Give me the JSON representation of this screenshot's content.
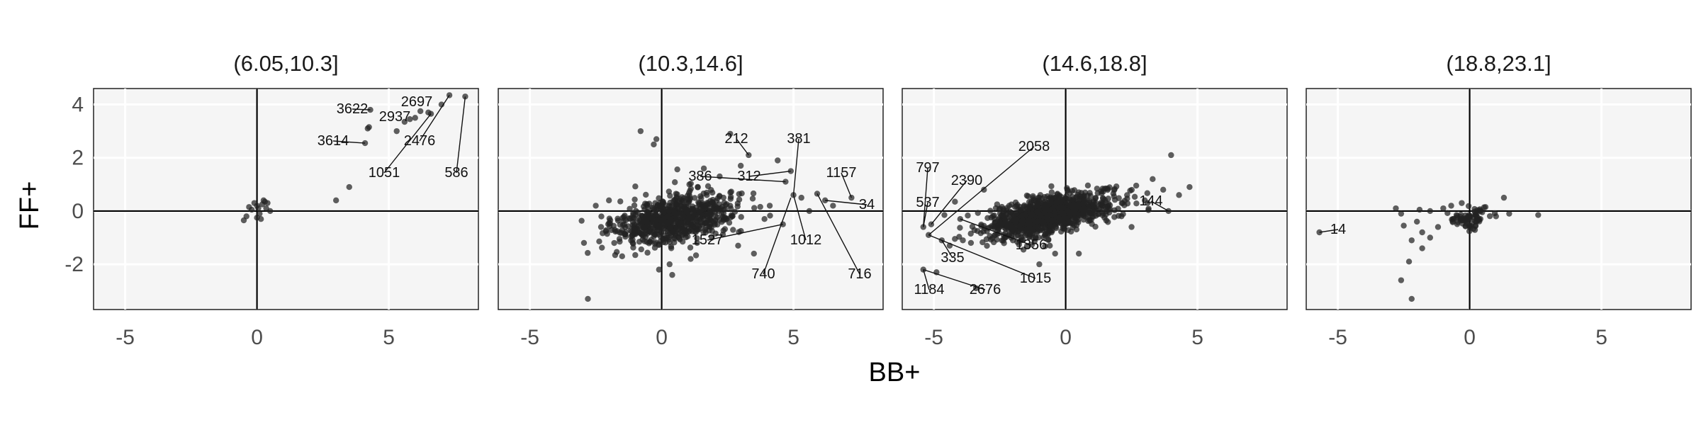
{
  "chart_data": {
    "type": "scatter",
    "xlabel": "BB+",
    "ylabel": "FF+",
    "xlim": [
      -6.2,
      8.4
    ],
    "ylim": [
      -3.7,
      4.6
    ],
    "x_ticks": [
      -5,
      0,
      5
    ],
    "y_ticks": [
      -2,
      0,
      2,
      4
    ],
    "grid": true,
    "reference_lines": {
      "x": 0,
      "y": 0
    },
    "panels": [
      {
        "title": "(6.05,10.3]",
        "points": [
          [
            0.0,
            0.2
          ],
          [
            -0.2,
            0.05
          ],
          [
            0.3,
            0.35
          ],
          [
            0.1,
            -0.1
          ],
          [
            -0.4,
            -0.2
          ],
          [
            0.5,
            0.0
          ],
          [
            0.2,
            0.25
          ],
          [
            -0.1,
            0.3
          ],
          [
            0.35,
            0.1
          ],
          [
            -0.3,
            0.15
          ],
          [
            0.15,
            -0.3
          ],
          [
            0.4,
            0.3
          ],
          [
            0.05,
            0.1
          ],
          [
            -0.5,
            -0.35
          ],
          [
            0.25,
            0.4
          ],
          [
            0.0,
            -0.25
          ],
          [
            3.0,
            0.4
          ],
          [
            3.5,
            0.9
          ],
          [
            4.1,
            2.55
          ],
          [
            4.2,
            3.1
          ],
          [
            4.25,
            3.15
          ],
          [
            4.3,
            3.8
          ],
          [
            5.6,
            3.35
          ],
          [
            5.8,
            3.45
          ],
          [
            6.0,
            3.5
          ],
          [
            6.2,
            3.75
          ],
          [
            6.5,
            3.7
          ],
          [
            6.6,
            3.65
          ],
          [
            7.0,
            4.0
          ],
          [
            7.3,
            4.35
          ],
          [
            7.9,
            4.3
          ],
          [
            5.3,
            3.0
          ]
        ],
        "labels": [
          {
            "text": "3622",
            "x": 4.3,
            "y": 3.8
          },
          {
            "text": "2937",
            "x": 5.8,
            "y": 3.45
          },
          {
            "text": "2697",
            "x": 6.5,
            "y": 3.7
          },
          {
            "text": "3614",
            "x": 4.1,
            "y": 2.55
          },
          {
            "text": "2476",
            "x": 7.3,
            "y": 4.35
          },
          {
            "text": "1051",
            "x": 6.6,
            "y": 3.65
          },
          {
            "text": "586",
            "x": 7.9,
            "y": 4.3
          }
        ]
      },
      {
        "title": "(10.3,14.6]",
        "points": [
          [
            -2.8,
            -3.3
          ],
          [
            -0.8,
            3.0
          ],
          [
            -0.2,
            2.7
          ],
          [
            -0.3,
            2.5
          ],
          [
            -2.3,
            -0.6
          ],
          [
            -1.8,
            -1.2
          ],
          [
            -1.5,
            -1.7
          ],
          [
            -2.0,
            0.4
          ],
          [
            2.6,
            2.9
          ],
          [
            3.3,
            2.1
          ],
          [
            4.4,
            1.9
          ],
          [
            4.9,
            1.5
          ],
          [
            4.7,
            1.1
          ],
          [
            5.0,
            0.6
          ],
          [
            5.3,
            0.5
          ],
          [
            5.9,
            0.65
          ],
          [
            6.2,
            0.4
          ],
          [
            6.5,
            0.2
          ],
          [
            7.2,
            0.5
          ],
          [
            4.1,
            0.2
          ],
          [
            3.9,
            -0.3
          ],
          [
            3.5,
            -1.6
          ],
          [
            2.9,
            -1.3
          ],
          [
            1.9,
            -1.0
          ],
          [
            1.1,
            -1.8
          ],
          [
            0.4,
            -2.4
          ],
          [
            -0.1,
            -2.2
          ],
          [
            1.6,
            1.6
          ],
          [
            2.2,
            1.3
          ],
          [
            3.0,
            1.7
          ],
          [
            5.6,
            0.0
          ],
          [
            4.6,
            -0.5
          ],
          [
            -2.5,
            0.2
          ],
          [
            0.3,
            -2.0
          ]
        ],
        "cluster": {
          "n": 720,
          "center": [
            0.5,
            -0.3
          ],
          "sd": [
            1.15,
            0.5
          ],
          "corr": 0.35,
          "seed": 20
        },
        "labels": [
          {
            "text": "212",
            "x": 3.3,
            "y": 2.1
          },
          {
            "text": "381",
            "x": 5.0,
            "y": 0.6
          },
          {
            "text": "1157",
            "x": 7.2,
            "y": 0.5
          },
          {
            "text": "386",
            "x": 4.7,
            "y": 1.1
          },
          {
            "text": "312",
            "x": 4.9,
            "y": 1.5
          },
          {
            "text": "34",
            "x": 6.2,
            "y": 0.4
          },
          {
            "text": "1527",
            "x": 4.6,
            "y": -0.5
          },
          {
            "text": "1012",
            "x": 5.0,
            "y": 0.6
          },
          {
            "text": "740",
            "x": 4.9,
            "y": 0.5
          },
          {
            "text": "716",
            "x": 5.9,
            "y": 0.65
          }
        ]
      },
      {
        "title": "(14.6,18.8]",
        "points": [
          [
            -5.4,
            -2.2
          ],
          [
            -4.9,
            -2.3
          ],
          [
            -3.4,
            -2.9
          ],
          [
            -5.4,
            -0.6
          ],
          [
            -5.2,
            -0.9
          ],
          [
            -4.7,
            -1.1
          ],
          [
            -4.4,
            -1.3
          ],
          [
            -3.9,
            -1.1
          ],
          [
            -3.6,
            -0.85
          ],
          [
            -4.6,
            -0.15
          ],
          [
            -4.2,
            0.35
          ],
          [
            -3.1,
            0.8
          ],
          [
            -2.6,
            0.25
          ],
          [
            -5.1,
            -0.5
          ],
          [
            -4.0,
            -0.3
          ],
          [
            -1.0,
            -2.0
          ],
          [
            -0.4,
            -1.6
          ],
          [
            -1.6,
            -1.45
          ],
          [
            4.0,
            2.1
          ],
          [
            4.7,
            0.9
          ],
          [
            3.9,
            0.0
          ],
          [
            3.7,
            0.8
          ],
          [
            4.3,
            0.6
          ],
          [
            3.3,
            1.2
          ],
          [
            -0.6,
            -1.3
          ],
          [
            0.5,
            -1.6
          ],
          [
            -2.0,
            -1.1
          ],
          [
            3.0,
            0.4
          ],
          [
            2.5,
            -0.6
          ]
        ],
        "cluster": {
          "n": 1050,
          "center": [
            -0.6,
            -0.15
          ],
          "sd": [
            1.2,
            0.42
          ],
          "corr": 0.55,
          "seed": 7
        },
        "labels": [
          {
            "text": "2058",
            "x": -5.2,
            "y": -0.9
          },
          {
            "text": "797",
            "x": -5.4,
            "y": -0.6
          },
          {
            "text": "2390",
            "x": -5.1,
            "y": -0.5
          },
          {
            "text": "537",
            "x": -5.4,
            "y": -0.6
          },
          {
            "text": "144",
            "x": 3.9,
            "y": 0.0
          },
          {
            "text": "335",
            "x": -4.7,
            "y": -1.1
          },
          {
            "text": "1356",
            "x": -4.0,
            "y": -0.3
          },
          {
            "text": "1015",
            "x": -5.2,
            "y": -0.9
          },
          {
            "text": "1184",
            "x": -5.4,
            "y": -2.2
          },
          {
            "text": "2676",
            "x": -5.4,
            "y": -2.2
          }
        ]
      },
      {
        "title": "(18.8,23.1]",
        "points": [
          [
            -5.7,
            -0.8
          ],
          [
            -2.2,
            -3.3
          ],
          [
            -2.6,
            -2.6
          ],
          [
            -2.3,
            -1.9
          ],
          [
            -1.8,
            -1.4
          ],
          [
            -2.2,
            -1.1
          ],
          [
            -1.8,
            -0.8
          ],
          [
            -1.5,
            -1.0
          ],
          [
            -2.5,
            -0.55
          ],
          [
            -2.0,
            -0.4
          ],
          [
            -1.2,
            -0.6
          ],
          [
            -2.8,
            0.1
          ],
          [
            -2.6,
            -0.1
          ],
          [
            -1.9,
            0.05
          ],
          [
            1.0,
            -0.2
          ],
          [
            1.5,
            -0.1
          ],
          [
            2.6,
            -0.15
          ],
          [
            1.3,
            0.5
          ],
          [
            0.6,
            0.15
          ],
          [
            -0.7,
            0.2
          ],
          [
            -1.5,
            0.0
          ],
          [
            -1.0,
            0.1
          ],
          [
            -0.5,
            -0.15
          ],
          [
            -0.3,
            0.3
          ]
        ],
        "cluster": {
          "n": 70,
          "center": [
            0.0,
            -0.3
          ],
          "sd": [
            0.4,
            0.22
          ],
          "corr": 0.3,
          "seed": 3
        },
        "labels": [
          {
            "text": "14",
            "x": -5.7,
            "y": -0.8
          }
        ]
      }
    ]
  }
}
